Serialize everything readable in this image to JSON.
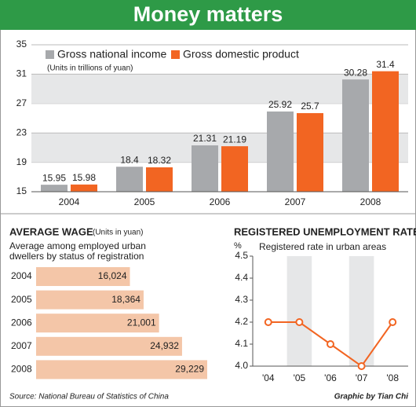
{
  "title": "Money matters",
  "source": "Source: National Bureau of Statistics of China",
  "credit": "Graphic by Tian Chi",
  "chart_data": [
    {
      "type": "bar",
      "subtitle": "(Units in trillions of yuan)",
      "categories": [
        "2004",
        "2005",
        "2006",
        "2007",
        "2008"
      ],
      "series": [
        {
          "name": "Gross national income",
          "color": "#a7a9ac",
          "values": [
            15.95,
            18.4,
            21.31,
            25.92,
            30.28
          ]
        },
        {
          "name": "Gross domestic product",
          "color": "#f26522",
          "values": [
            15.98,
            18.32,
            21.19,
            25.7,
            31.4
          ]
        }
      ],
      "ylim": [
        15,
        35
      ],
      "yticks": [
        15,
        19,
        23,
        27,
        31,
        35
      ],
      "grid": true
    },
    {
      "type": "hbar",
      "title": "AVERAGE WAGE",
      "unit": "(Units in yuan)",
      "subtitle": [
        "Average among employed urban",
        "dwellers by status of registration"
      ],
      "categories": [
        "2004",
        "2005",
        "2006",
        "2007",
        "2008"
      ],
      "values": [
        16024,
        18364,
        21001,
        24932,
        29229
      ],
      "value_labels": [
        "16,024",
        "18,364",
        "21,001",
        "24,932",
        "29,229"
      ],
      "color": "#f4c6a8"
    },
    {
      "type": "line",
      "title": "REGISTERED UNEMPLOYMENT RATE",
      "ylabel": "%",
      "subtitle": "Registered rate in urban areas",
      "categories": [
        "'04",
        "'05",
        "'06",
        "'07",
        "'08"
      ],
      "values": [
        4.2,
        4.2,
        4.1,
        4.0,
        4.2
      ],
      "color": "#f26522",
      "ylim": [
        4.0,
        4.5
      ],
      "yticks": [
        {
          "value": 4.0,
          "label": "4.0"
        },
        4.1,
        4.2,
        4.3,
        4.4,
        {
          "value": 4.5,
          "label": "4.5"
        }
      ]
    }
  ]
}
